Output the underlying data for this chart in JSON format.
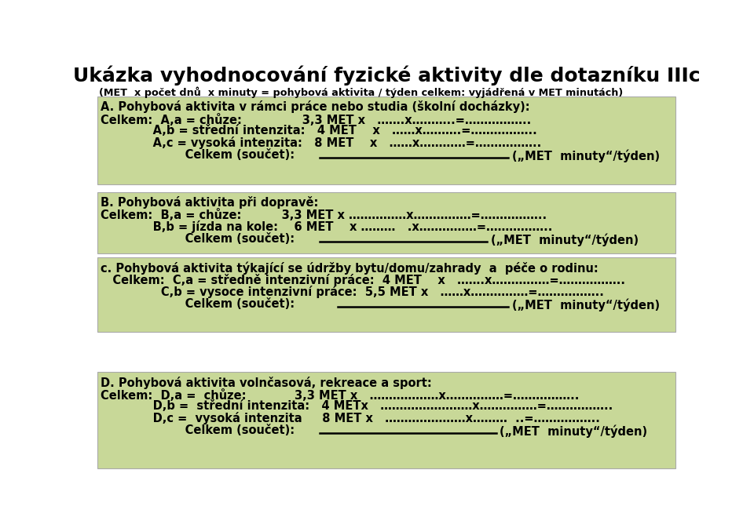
{
  "title": "Ukázka vyhodnocování fyzické aktivity dle dotazníku IIIc",
  "bg_color": "#c8d898",
  "white_bg": "#ffffff",
  "subtitle": "(MET  x počet dnů  x minuty = pohybová aktivita / týden celkem: vyjádřená v MET minutách)",
  "sec_A_header": "A. Pohybová aktivita v rámci práce nebo studia (školní docházky):",
  "sec_A_line1": "Celkem:  A,a = chůze:               3,3 MET x   …….x………..=……………..",
  "sec_A_line2": "             A,b = střední intenzita:   4 MET    x   ……x……….=……………..",
  "sec_A_line3": "             A,c = vysoká intenzita:   8 MET    x   ……x…………=……………..",
  "sec_A_celkem": "                     Celkem (součet):",
  "sec_B_header": "B. Pohybová aktivita při dopravě:",
  "sec_B_line1": "Celkem:  B,a = chůze:          3,3 MET x ……………x……………=……………..",
  "sec_B_line2": "             B,b = jízda na kole:    6 MET    x ………   .x……………=……………..",
  "sec_B_celkem": "                     Celkem (součet):",
  "sec_C_header": "c. Pohybová aktivita týkající se údržby bytu/domu/zahrady  a  péče o rodinu:",
  "sec_C_line1": "   Celkem:  C,a = středně intenzivní práce:  4 MET    x   …….x……………=……………..",
  "sec_C_line2": "               C,b = vysoce intenzivní práce:  5,5 MET x   ……x……………=……………..",
  "sec_C_celkem": "                     Celkem (součet):",
  "sec_D_header": "D. Pohybová aktivita volnčasová, rekreace a sport:",
  "sec_D_line1": "Celkem:  D,a =  chůze:            3,3 MET x   ………………x……………=……………..",
  "sec_D_line2": "             D,b =  střední intenzita:   4 METx   ……………………x……………=……………..",
  "sec_D_line3": "             D,c =  vysoká intenzita     8 MET x   …………………x………  ..=……………..",
  "sec_D_celkem": "                     Celkem (součet):",
  "celkem_label": "(„MET  minuty“/týden)",
  "line_color": "#000000",
  "text_color": "#000000",
  "border_color": "#aaaaaa"
}
